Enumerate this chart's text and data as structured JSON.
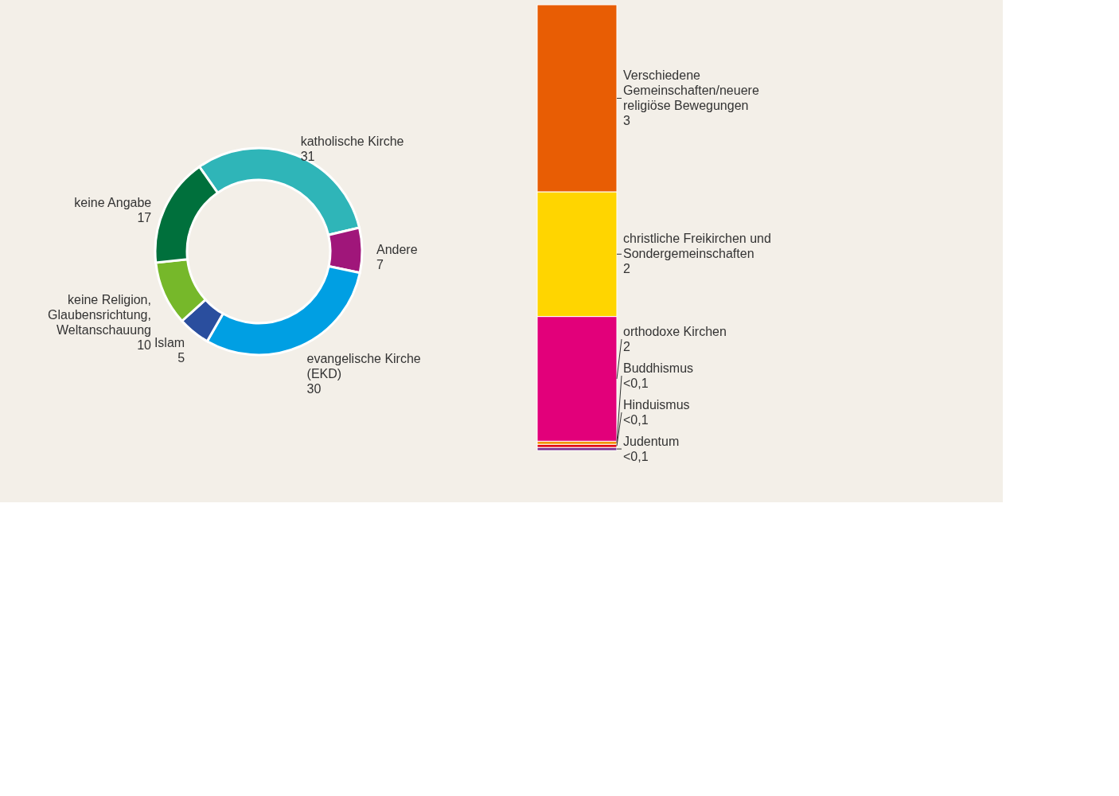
{
  "chart_data": [
    {
      "type": "donut",
      "categories": [
        "katholische Kirche",
        "Andere",
        "evangelische Kirche (EKD)",
        "Islam",
        "keine Religion, Glaubensrichtung, Weltanschauung",
        "keine Angabe"
      ],
      "values": [
        31,
        7,
        30,
        5,
        10,
        17
      ],
      "colors": [
        "#2fb5b8",
        "#a0167a",
        "#009fe3",
        "#2a4e9e",
        "#76b82a",
        "#00703c"
      ],
      "data_labels": true
    },
    {
      "type": "bar",
      "stacked": true,
      "categories": [
        null
      ],
      "series": [
        {
          "name": "Judentum",
          "color": "#7b2d8e",
          "values": [
            0.05
          ],
          "value_labels": [
            "<0,1"
          ]
        },
        {
          "name": "Hinduismus",
          "color": "#e30613",
          "values": [
            0.05
          ],
          "value_labels": [
            "<0,1"
          ]
        },
        {
          "name": "Buddhismus",
          "color": "#f39200",
          "values": [
            0.05
          ],
          "value_labels": [
            "<0,1"
          ]
        },
        {
          "name": "orthodoxe Kirchen",
          "color": "#e2007a",
          "values": [
            2
          ],
          "value_labels": [
            "2"
          ]
        },
        {
          "name": "christliche Freikirchen und Sondergemeinschaften",
          "color": "#ffd500",
          "values": [
            2
          ],
          "value_labels": [
            "2"
          ]
        },
        {
          "name": "Verschiedene Gemeinschaften/neuere religiöse Bewegungen",
          "color": "#e85d04",
          "values": [
            3
          ],
          "value_labels": [
            "3"
          ]
        }
      ]
    }
  ]
}
